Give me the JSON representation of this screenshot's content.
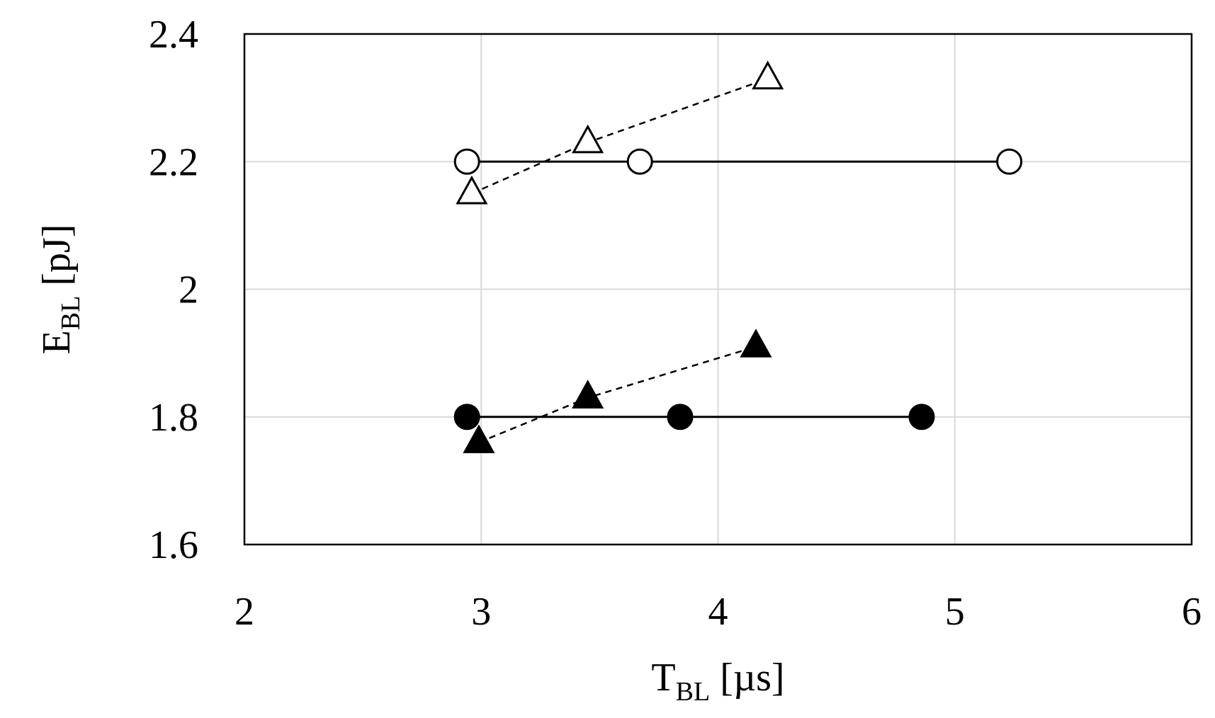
{
  "chart_data": {
    "type": "scatter",
    "title": "",
    "xlabel": {
      "main": "T",
      "sub": "BL",
      "unit": " [µs]"
    },
    "ylabel": {
      "main": "E",
      "sub": "BL",
      "unit": " [pJ]"
    },
    "xlim": [
      2,
      6
    ],
    "ylim": [
      1.6,
      2.4
    ],
    "x_ticks": [
      2,
      3,
      4,
      5,
      6
    ],
    "y_ticks": [
      1.6,
      1.8,
      2,
      2.2,
      2.4
    ],
    "x_tick_labels": [
      "2",
      "3",
      "4",
      "5",
      "6"
    ],
    "y_tick_labels": [
      "1.6",
      "1.8",
      "2",
      "2.2",
      "2.4"
    ],
    "grid": true,
    "legend": "none",
    "series": [
      {
        "marker": "open-circle",
        "line": "solid",
        "color": "#000000",
        "points": [
          [
            2.94,
            2.2
          ],
          [
            3.67,
            2.2
          ],
          [
            5.23,
            2.2
          ]
        ]
      },
      {
        "marker": "open-triangle",
        "line": "dashed",
        "color": "#000000",
        "points": [
          [
            2.96,
            2.15
          ],
          [
            3.45,
            2.23
          ],
          [
            4.21,
            2.33
          ]
        ]
      },
      {
        "marker": "filled-circle",
        "line": "solid",
        "color": "#000000",
        "points": [
          [
            2.94,
            1.8
          ],
          [
            3.84,
            1.8
          ],
          [
            4.86,
            1.8
          ]
        ]
      },
      {
        "marker": "filled-triangle",
        "line": "dashed",
        "color": "#000000",
        "points": [
          [
            2.99,
            1.76
          ],
          [
            3.45,
            1.83
          ],
          [
            4.16,
            1.91
          ]
        ]
      }
    ]
  }
}
